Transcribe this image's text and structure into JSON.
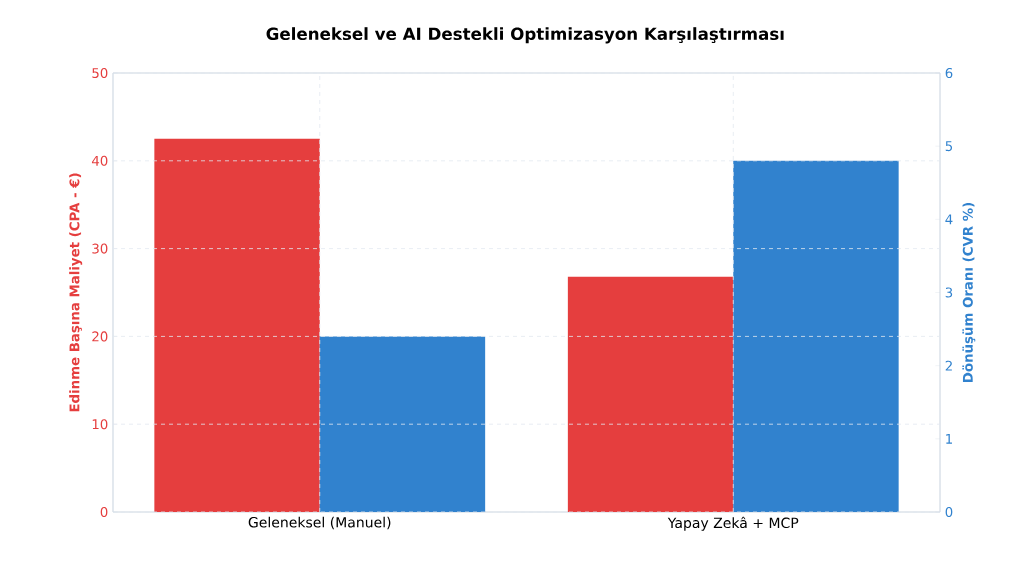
{
  "chart_data": {
    "type": "bar",
    "title": "Geleneksel ve AI Destekli Optimizasyon Karşılaştırması",
    "categories": [
      "Geleneksel (Manuel)",
      "Yapay Zekâ + MCP"
    ],
    "ylabel": "Edinme Başına Maliyet (CPA - €)",
    "y2label": "Dönüşüm Oranı (CVR %)",
    "series": [
      {
        "color": "#e53e3e",
        "values": [
          42.5,
          26.8
        ]
      },
      {
        "color": "#3182ce",
        "values": [
          2.4,
          4.8
        ],
        "axis": "y2"
      }
    ],
    "ylim": [
      0,
      50
    ],
    "yticks": [
      0,
      10,
      20,
      30,
      40,
      50
    ],
    "y2lim": [
      0,
      6
    ],
    "y2ticks": [
      0,
      1,
      2,
      3,
      4,
      5,
      6
    ],
    "grid": true
  }
}
